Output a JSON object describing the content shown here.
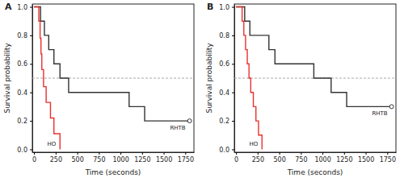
{
  "chart_data": [
    {
      "type": "step",
      "title": "A",
      "x_label": "Time (seconds)",
      "y_label": "Survival probability",
      "xlim": [
        -20,
        1850
      ],
      "ylim": [
        -0.02,
        1.02
      ],
      "xticks": [
        0,
        250,
        500,
        750,
        1000,
        1250,
        1500,
        1750
      ],
      "yticks": [
        {
          "value": 0,
          "label": "0.0"
        },
        0.2,
        0.4,
        0.6,
        0.8,
        {
          "value": 1,
          "label": "1.0"
        }
      ],
      "hline": 0.5,
      "series": [
        {
          "name": "RHTB",
          "color": "#333333",
          "x": [
            0,
            75,
            120,
            170,
            230,
            300,
            400,
            1100,
            1280,
            1800
          ],
          "values": [
            1,
            0.9,
            0.8,
            0.7,
            0.6,
            0.5,
            0.4,
            0.3,
            0.2,
            0.2
          ],
          "censored": [
            1800
          ]
        },
        {
          "name": "HO",
          "color": "#e8312f",
          "x": [
            0,
            55,
            70,
            80,
            90,
            110,
            140,
            190,
            230,
            300
          ],
          "values": [
            1,
            0.9,
            0.78,
            0.67,
            0.56,
            0.44,
            0.33,
            0.22,
            0.11,
            0
          ]
        }
      ]
    },
    {
      "type": "step",
      "title": "B",
      "x_label": "Time (seconds)",
      "y_label": "Survival probability",
      "xlim": [
        -20,
        1850
      ],
      "ylim": [
        -0.02,
        1.02
      ],
      "xticks": [
        0,
        250,
        500,
        750,
        1000,
        1250,
        1500,
        1750
      ],
      "yticks": [
        {
          "value": 0,
          "label": "0.0"
        },
        0.2,
        0.4,
        0.6,
        0.8,
        {
          "value": 1,
          "label": "1.0"
        }
      ],
      "hline": 0.5,
      "series": [
        {
          "name": "RHTB",
          "color": "#333333",
          "x": [
            0,
            100,
            160,
            380,
            450,
            900,
            1100,
            1280,
            1800
          ],
          "values": [
            1,
            0.9,
            0.8,
            0.7,
            0.6,
            0.5,
            0.4,
            0.3,
            0.3
          ],
          "censored": [
            1800
          ]
        },
        {
          "name": "HO",
          "color": "#e8312f",
          "x": [
            0,
            70,
            90,
            110,
            130,
            150,
            170,
            200,
            230,
            260,
            300
          ],
          "values": [
            1,
            0.9,
            0.8,
            0.7,
            0.6,
            0.5,
            0.4,
            0.3,
            0.2,
            0.1,
            0
          ]
        }
      ]
    }
  ]
}
